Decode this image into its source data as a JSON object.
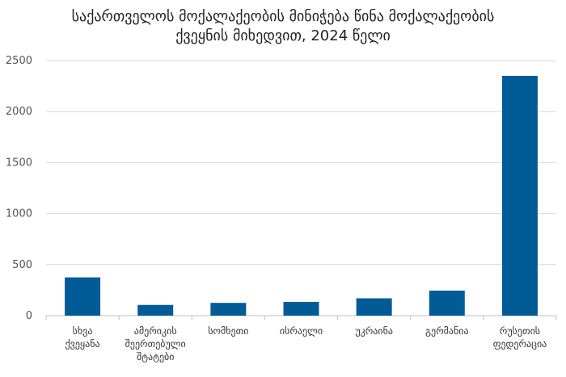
{
  "chart_data": {
    "type": "bar",
    "title_line1": "საქართველოს მოქალაქეობის მინიჭება წინა მოქალაქეობის",
    "title_line2": "ქვეყნის მიხედვით, 2024 წელი",
    "categories": [
      [
        "სხვა",
        "ქვეყანა"
      ],
      [
        "ამერიკის",
        "შეერთებული",
        "შტატები"
      ],
      [
        "სომხეთი"
      ],
      [
        "ისრაელი"
      ],
      [
        "უკრაინა"
      ],
      [
        "გერმანია"
      ],
      [
        "რუსეთის",
        "ფედერაცია"
      ]
    ],
    "values": [
      375,
      105,
      125,
      135,
      170,
      245,
      2350
    ],
    "ylim": [
      0,
      2500
    ],
    "yticks": [
      0,
      500,
      1000,
      1500,
      2000,
      2500
    ],
    "grid": true,
    "colors": {
      "bar": "#005b96",
      "grid": "#d9d9d9",
      "axis": "#bfbfbf"
    }
  }
}
